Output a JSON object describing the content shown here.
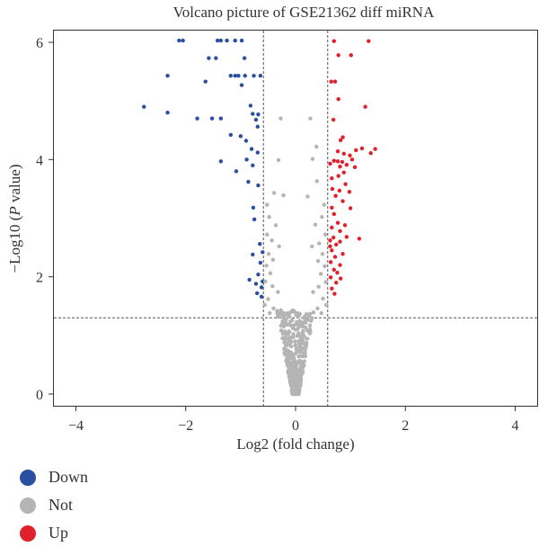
{
  "chart_data": {
    "type": "scatter",
    "title": "Volcano picture of GSE21362 diff miRNA",
    "xlabel": "Log2 (fold change)",
    "ylabel_prefix": "−Log10 (",
    "ylabel_italic": "P",
    "ylabel_suffix": " value)",
    "xlim": [
      -4.4,
      4.4
    ],
    "ylim": [
      -0.2,
      6.2
    ],
    "x_ticks": [
      -4,
      -2,
      0,
      2,
      4
    ],
    "y_ticks": [
      0,
      2,
      4,
      6
    ],
    "x_tick_labels": [
      "−4",
      "−2",
      "0",
      "2",
      "4"
    ],
    "y_tick_labels": [
      "0",
      "2",
      "4",
      "6"
    ],
    "grid": false,
    "thresholds": {
      "fold_change": [
        -0.585,
        0.585
      ],
      "neg_log10_p": 1.3
    },
    "colors": {
      "Down": "#2b4fa0",
      "Not": "#b4b4b4",
      "Up": "#e0202a"
    },
    "legend": {
      "position": "bottom-left",
      "entries": [
        "Down",
        "Not",
        "Up"
      ]
    },
    "series": [
      {
        "name": "Down",
        "points": [
          [
            -2.12,
            6.03
          ],
          [
            -2.05,
            6.03
          ],
          [
            -1.42,
            6.03
          ],
          [
            -1.36,
            6.03
          ],
          [
            -1.25,
            6.03
          ],
          [
            -1.1,
            6.03
          ],
          [
            -0.98,
            6.03
          ],
          [
            -1.58,
            5.73
          ],
          [
            -1.45,
            5.73
          ],
          [
            -0.93,
            5.73
          ],
          [
            -2.33,
            5.43
          ],
          [
            -1.64,
            5.33
          ],
          [
            -1.18,
            5.43
          ],
          [
            -1.1,
            5.43
          ],
          [
            -1.04,
            5.43
          ],
          [
            -0.92,
            5.43
          ],
          [
            -0.76,
            5.43
          ],
          [
            -0.64,
            5.43
          ],
          [
            -0.98,
            5.27
          ],
          [
            -2.76,
            4.9
          ],
          [
            -2.33,
            4.8
          ],
          [
            -1.79,
            4.7
          ],
          [
            -1.52,
            4.7
          ],
          [
            -1.36,
            4.7
          ],
          [
            -0.68,
            4.77
          ],
          [
            -0.82,
            4.92
          ],
          [
            -0.78,
            4.78
          ],
          [
            -0.72,
            4.68
          ],
          [
            -0.69,
            4.56
          ],
          [
            -1.18,
            4.42
          ],
          [
            -1.0,
            4.4
          ],
          [
            -0.9,
            4.32
          ],
          [
            -0.8,
            4.18
          ],
          [
            -0.69,
            4.12
          ],
          [
            -1.36,
            3.97
          ],
          [
            -0.89,
            4.0
          ],
          [
            -0.78,
            3.9
          ],
          [
            -1.08,
            3.8
          ],
          [
            -0.86,
            3.62
          ],
          [
            -0.68,
            3.56
          ],
          [
            -0.77,
            3.18
          ],
          [
            -0.75,
            2.98
          ],
          [
            -0.65,
            2.56
          ],
          [
            -0.78,
            2.38
          ],
          [
            -0.64,
            2.24
          ],
          [
            -0.68,
            2.04
          ],
          [
            -0.72,
            1.88
          ],
          [
            -0.7,
            1.72
          ],
          [
            -0.62,
            1.82
          ],
          [
            -0.62,
            1.66
          ],
          [
            -0.84,
            1.95
          ],
          [
            -0.6,
            2.42
          ],
          [
            -0.6,
            1.92
          ]
        ]
      },
      {
        "name": "Not",
        "points": [
          [
            -0.27,
            4.7
          ],
          [
            -0.31,
            3.99
          ],
          [
            -0.39,
            3.43
          ],
          [
            -0.22,
            3.39
          ],
          [
            -0.52,
            3.23
          ],
          [
            -0.48,
            3.02
          ],
          [
            -0.36,
            2.88
          ],
          [
            -0.52,
            2.72
          ],
          [
            -0.43,
            2.62
          ],
          [
            -0.3,
            2.52
          ],
          [
            -0.49,
            2.39
          ],
          [
            -0.41,
            2.29
          ],
          [
            -0.53,
            2.19
          ],
          [
            -0.46,
            2.06
          ],
          [
            -0.55,
            1.92
          ],
          [
            -0.42,
            1.84
          ],
          [
            -0.32,
            1.74
          ],
          [
            -0.5,
            1.62
          ],
          [
            -0.56,
            1.52
          ],
          [
            -0.4,
            1.46
          ],
          [
            -0.47,
            1.38
          ],
          [
            0.27,
            4.7
          ],
          [
            0.31,
            4.01
          ],
          [
            0.38,
            4.22
          ],
          [
            0.39,
            3.63
          ],
          [
            0.22,
            3.37
          ],
          [
            0.52,
            3.23
          ],
          [
            0.48,
            3.02
          ],
          [
            0.36,
            2.89
          ],
          [
            0.54,
            2.72
          ],
          [
            0.43,
            2.57
          ],
          [
            0.3,
            2.52
          ],
          [
            0.49,
            2.39
          ],
          [
            0.41,
            2.27
          ],
          [
            0.53,
            2.18
          ],
          [
            0.46,
            2.05
          ],
          [
            0.55,
            1.91
          ],
          [
            0.42,
            1.83
          ],
          [
            0.32,
            1.74
          ],
          [
            0.5,
            1.63
          ],
          [
            0.56,
            1.52
          ],
          [
            0.4,
            1.46
          ],
          [
            0.47,
            1.38
          ]
        ]
      },
      {
        "name": "Up",
        "points": [
          [
            0.7,
            6.02
          ],
          [
            1.33,
            6.02
          ],
          [
            0.78,
            5.78
          ],
          [
            1.01,
            5.78
          ],
          [
            0.65,
            5.33
          ],
          [
            0.72,
            5.33
          ],
          [
            0.78,
            5.03
          ],
          [
            0.69,
            4.68
          ],
          [
            1.27,
            4.9
          ],
          [
            0.86,
            4.38
          ],
          [
            0.82,
            4.33
          ],
          [
            1.1,
            4.16
          ],
          [
            1.21,
            4.19
          ],
          [
            1.45,
            4.18
          ],
          [
            1.37,
            4.11
          ],
          [
            0.77,
            4.14
          ],
          [
            0.88,
            4.1
          ],
          [
            0.99,
            4.07
          ],
          [
            1.03,
            4.0
          ],
          [
            0.7,
            3.98
          ],
          [
            0.77,
            3.97
          ],
          [
            0.63,
            3.93
          ],
          [
            0.85,
            3.96
          ],
          [
            0.93,
            3.91
          ],
          [
            0.81,
            3.88
          ],
          [
            1.08,
            3.87
          ],
          [
            0.88,
            3.78
          ],
          [
            0.78,
            3.72
          ],
          [
            0.66,
            3.68
          ],
          [
            0.91,
            3.58
          ],
          [
            0.8,
            3.47
          ],
          [
            0.98,
            3.45
          ],
          [
            0.73,
            3.38
          ],
          [
            0.86,
            3.29
          ],
          [
            0.66,
            3.18
          ],
          [
            1.0,
            3.17
          ],
          [
            0.7,
            3.07
          ],
          [
            0.77,
            2.92
          ],
          [
            0.66,
            2.84
          ],
          [
            0.9,
            2.88
          ],
          [
            0.81,
            2.78
          ],
          [
            0.69,
            2.67
          ],
          [
            0.93,
            2.68
          ],
          [
            0.81,
            2.6
          ],
          [
            1.16,
            2.65
          ],
          [
            0.63,
            2.52
          ],
          [
            0.74,
            2.55
          ],
          [
            0.66,
            2.45
          ],
          [
            0.86,
            2.39
          ],
          [
            0.72,
            2.34
          ],
          [
            0.64,
            2.25
          ],
          [
            0.81,
            2.2
          ],
          [
            0.7,
            2.12
          ],
          [
            0.76,
            2.07
          ],
          [
            0.64,
            1.99
          ],
          [
            0.82,
            1.97
          ],
          [
            0.74,
            1.9
          ],
          [
            0.66,
            1.8
          ],
          [
            0.71,
            1.71
          ],
          [
            0.63,
            2.62
          ],
          [
            0.67,
            3.5
          ]
        ]
      }
    ]
  }
}
